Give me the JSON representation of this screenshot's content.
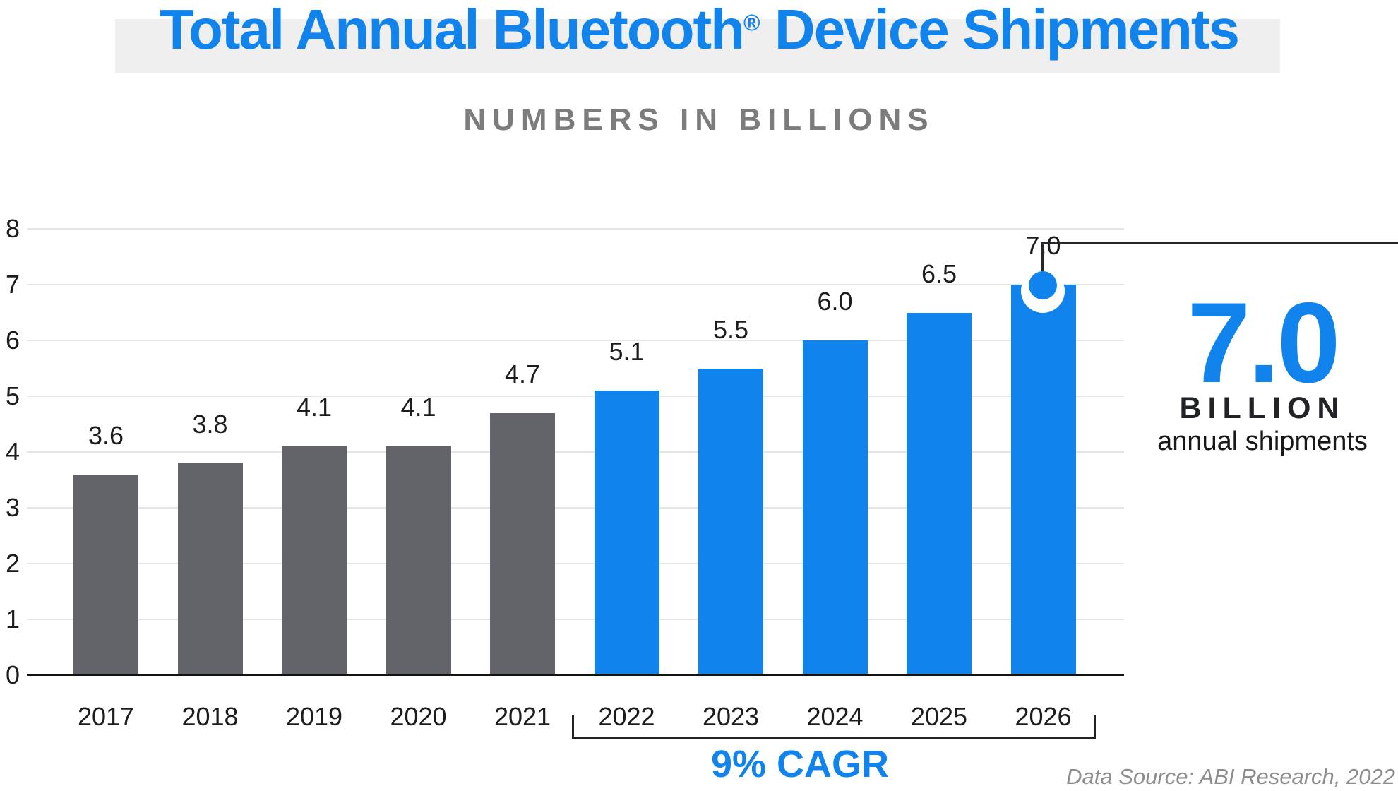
{
  "header": {
    "title_main": "Total Annual Bluetooth",
    "title_reg": "®",
    "title_rest": " Device Shipments",
    "subtitle": "NUMBERS IN BILLIONS"
  },
  "callout": {
    "value": "7.0",
    "unit": "BILLION",
    "caption": "annual shipments"
  },
  "cagr": {
    "label": "9% CAGR",
    "range": [
      "2022",
      "2026"
    ]
  },
  "source": {
    "text": "Data Source: ABI Research, 2022"
  },
  "chart_data": {
    "type": "bar",
    "title": "Total Annual Bluetooth® Device Shipments",
    "subtitle": "NUMBERS IN BILLIONS",
    "categories": [
      "2017",
      "2018",
      "2019",
      "2020",
      "2021",
      "2022",
      "2023",
      "2024",
      "2025",
      "2026"
    ],
    "values": [
      3.6,
      3.8,
      4.1,
      4.1,
      4.7,
      5.1,
      5.5,
      6.0,
      6.5,
      7.0
    ],
    "value_labels": [
      "3.6",
      "3.8",
      "4.1",
      "4.1",
      "4.7",
      "5.1",
      "5.5",
      "6.0",
      "6.5",
      "7.0"
    ],
    "xlabel": "",
    "ylabel": "",
    "ylim": [
      0,
      8
    ],
    "yticks": [
      0,
      1,
      2,
      3,
      4,
      5,
      6,
      7,
      8
    ],
    "grid": "horizontal",
    "legend": "none",
    "forecast_from_index": 5,
    "colors": {
      "historical_bar": "#626469",
      "forecast_bar": "#1183ed",
      "accent_blue": "#1183ed",
      "gridline": "#e5e5e5",
      "axis": "#141414",
      "text_dark": "#1b1c1e",
      "subtitle_gray": "#7c7c7c",
      "title_band": "#efefef",
      "source_gray": "#8d8d8d"
    },
    "highlight": {
      "category": "2026",
      "value": 7.0,
      "marker": "blue dot with white ring on bar top, connector line to callout"
    },
    "annotations": {
      "cagr_bracket": "9% CAGR under 2022–2026",
      "callout": "7.0 BILLION annual shipments",
      "source": "Data Source: ABI Research, 2022"
    }
  }
}
